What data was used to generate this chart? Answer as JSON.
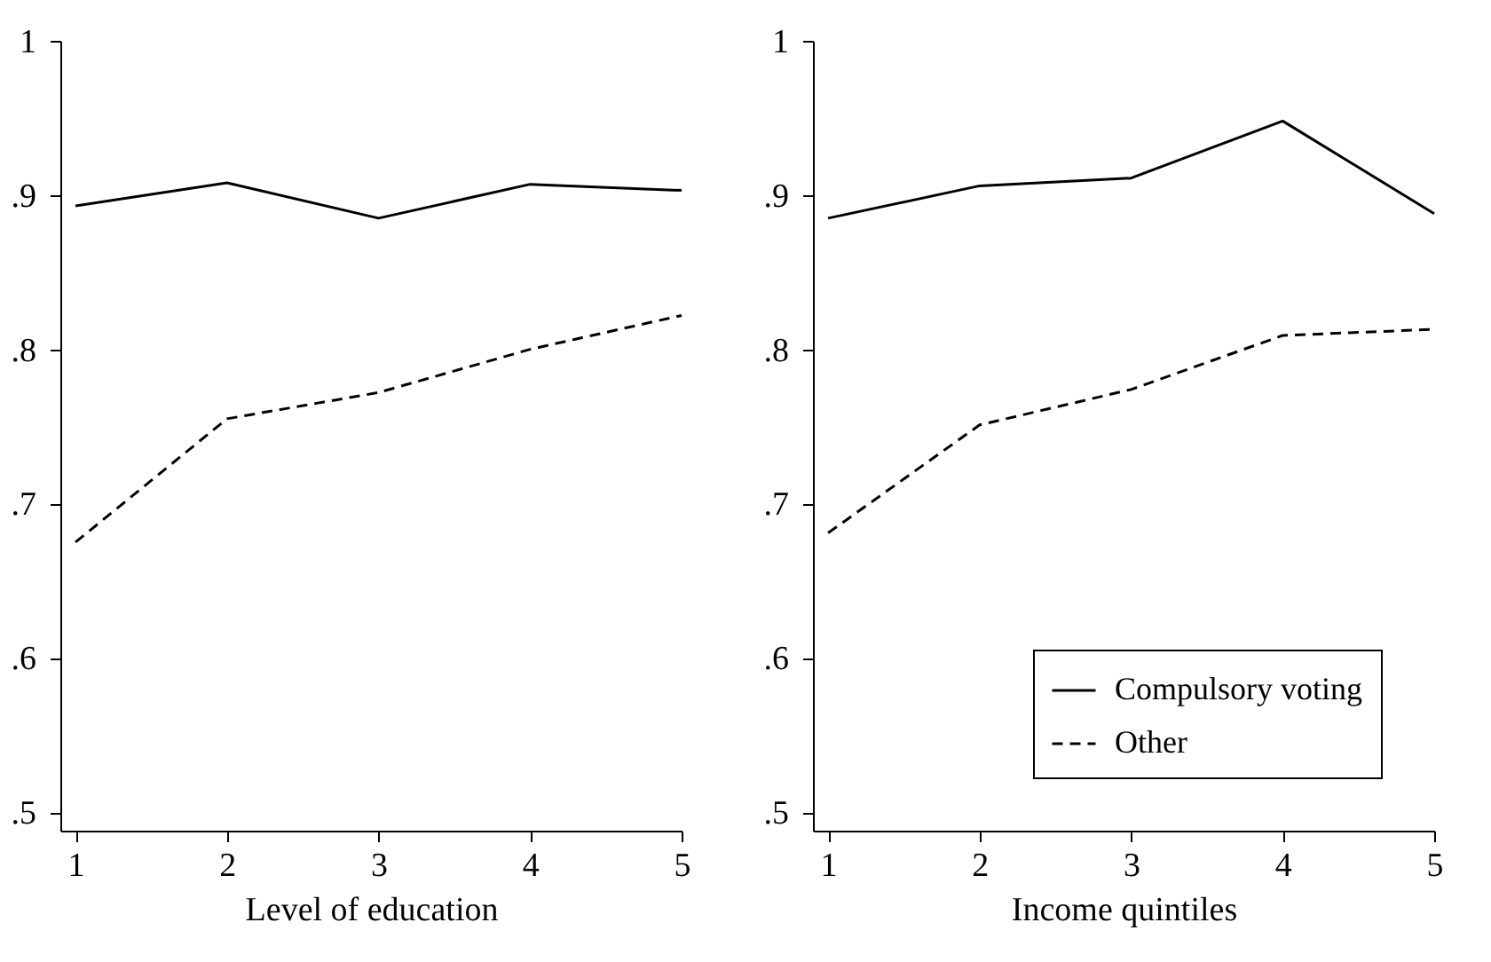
{
  "chart_data": [
    {
      "type": "line",
      "xlabel": "Level of education",
      "x": [
        1,
        2,
        3,
        4,
        5
      ],
      "series": [
        {
          "color": "#000000",
          "line_style": "solid",
          "values": [
            0.893,
            0.908,
            0.885,
            0.907,
            0.903
          ]
        },
        {
          "color": "#000000",
          "line_style": "dashed",
          "values": [
            0.675,
            0.755,
            0.772,
            0.8,
            0.822
          ]
        }
      ],
      "xlim": [
        0.9,
        5
      ],
      "xticks": [
        1,
        2,
        3,
        4,
        5
      ],
      "ylim": [
        0.488,
        1
      ],
      "yticks": [
        {
          "value": 0.5,
          "label": ".5"
        },
        {
          "value": 0.6,
          "label": ".6"
        },
        {
          "value": 0.7,
          "label": ".7"
        },
        {
          "value": 0.8,
          "label": ".8"
        },
        {
          "value": 0.9,
          "label": ".9"
        },
        1
      ],
      "grid": false
    },
    {
      "type": "line",
      "xlabel": "Income quintiles",
      "x": [
        1,
        2,
        3,
        4,
        5
      ],
      "series": [
        {
          "name": "Compulsory voting",
          "color": "#000000",
          "line_style": "solid",
          "values": [
            0.885,
            0.906,
            0.911,
            0.948,
            0.888
          ]
        },
        {
          "name": "Other",
          "color": "#000000",
          "line_style": "dashed",
          "values": [
            0.681,
            0.751,
            0.774,
            0.809,
            0.813
          ]
        }
      ],
      "xlim": [
        0.9,
        5
      ],
      "xticks": [
        1,
        2,
        3,
        4,
        5
      ],
      "ylim": [
        0.488,
        1
      ],
      "yticks": [
        {
          "value": 0.5,
          "label": ".5"
        },
        {
          "value": 0.6,
          "label": ".6"
        },
        {
          "value": 0.7,
          "label": ".7"
        },
        {
          "value": 0.8,
          "label": ".8"
        },
        {
          "value": 0.9,
          "label": ".9"
        },
        1
      ],
      "grid": false,
      "legend": "bottom right"
    }
  ]
}
